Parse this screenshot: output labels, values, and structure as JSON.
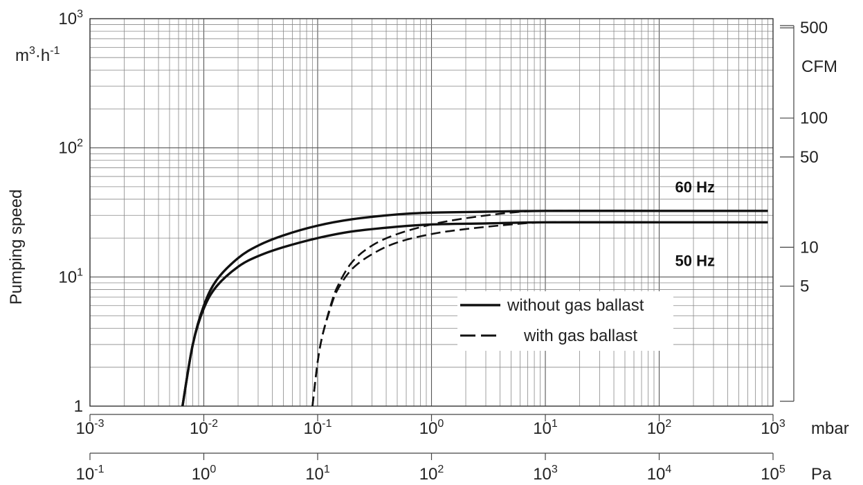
{
  "chart_data": {
    "type": "line",
    "xscale": "log",
    "yscale": "log",
    "xlim": [
      0.001,
      1000
    ],
    "ylim": [
      1,
      1000
    ],
    "grid": true,
    "legend_position": "lower-right",
    "ylabel": "Pumping speed",
    "y_unit": {
      "base": "m",
      "sup1": "3",
      "mid": "·h",
      "sup2": "-1"
    },
    "x_unit": "mbar",
    "x2_unit": "Pa",
    "y2_unit": "CFM",
    "y_ticks": [
      {
        "value": 1,
        "base": "1",
        "exp": ""
      },
      {
        "value": 10,
        "base": "10",
        "exp": "1"
      },
      {
        "value": 100,
        "base": "10",
        "exp": "2"
      },
      {
        "value": 1000,
        "base": "10",
        "exp": "3"
      }
    ],
    "x_ticks": [
      {
        "value": 0.001,
        "base": "10",
        "exp": "-3"
      },
      {
        "value": 0.01,
        "base": "10",
        "exp": "-2"
      },
      {
        "value": 0.1,
        "base": "10",
        "exp": "-1"
      },
      {
        "value": 1,
        "base": "10",
        "exp": "0"
      },
      {
        "value": 10,
        "base": "10",
        "exp": "1"
      },
      {
        "value": 100,
        "base": "10",
        "exp": "2"
      },
      {
        "value": 1000,
        "base": "10",
        "exp": "3"
      }
    ],
    "x2_ticks": [
      {
        "value": 0.1,
        "base": "10",
        "exp": "-1"
      },
      {
        "value": 1,
        "base": "10",
        "exp": "0"
      },
      {
        "value": 10,
        "base": "10",
        "exp": "1"
      },
      {
        "value": 100,
        "base": "10",
        "exp": "2"
      },
      {
        "value": 1000,
        "base": "10",
        "exp": "3"
      },
      {
        "value": 10000,
        "base": "10",
        "exp": "4"
      },
      {
        "value": 100000,
        "base": "10",
        "exp": "5"
      }
    ],
    "y2_ticks": [
      {
        "value": 5,
        "label": "5"
      },
      {
        "value": 10,
        "label": "10"
      },
      {
        "value": 50,
        "label": "50"
      },
      {
        "value": 100,
        "label": "100"
      },
      {
        "value": 500,
        "label": "500"
      }
    ],
    "series": [
      {
        "name": "without gas ballast",
        "label": "60 Hz",
        "style": "solid",
        "x": [
          0.0065,
          0.008,
          0.01,
          0.013,
          0.02,
          0.03,
          0.05,
          0.1,
          0.2,
          0.5,
          1,
          3,
          10,
          100,
          900
        ],
        "y": [
          1,
          3,
          6,
          9.5,
          14,
          17.5,
          21,
          25,
          28,
          30.5,
          31.5,
          32,
          32.5,
          32.5,
          32.5
        ]
      },
      {
        "name": "without gas ballast",
        "label": "50 Hz",
        "style": "solid",
        "x": [
          0.0065,
          0.008,
          0.01,
          0.013,
          0.02,
          0.03,
          0.05,
          0.1,
          0.2,
          0.5,
          1,
          3,
          10,
          100,
          900
        ],
        "y": [
          1,
          3,
          5.7,
          8.5,
          12,
          14.5,
          17,
          20,
          22.5,
          24.5,
          25.5,
          26,
          26.5,
          26.5,
          26.5
        ]
      },
      {
        "name": "with gas ballast",
        "label": "60 Hz",
        "style": "dashed",
        "x": [
          0.09,
          0.1,
          0.11,
          0.13,
          0.15,
          0.2,
          0.3,
          0.5,
          1,
          2,
          5,
          10,
          30
        ],
        "y": [
          1,
          2.2,
          3.5,
          6,
          8.5,
          13,
          17.5,
          21.5,
          25.5,
          28.5,
          31.5,
          32.5,
          32.5
        ]
      },
      {
        "name": "with gas ballast",
        "label": "50 Hz",
        "style": "dashed",
        "x": [
          0.09,
          0.1,
          0.11,
          0.13,
          0.15,
          0.2,
          0.3,
          0.5,
          1,
          2,
          5,
          10,
          30
        ],
        "y": [
          1,
          2.2,
          3.5,
          5.8,
          8,
          11.5,
          15,
          18.5,
          21.5,
          23.5,
          25.5,
          26.5,
          26.5
        ]
      }
    ],
    "series_labels": [
      {
        "text": "60 Hz",
        "x": 200,
        "y": 38
      },
      {
        "text": "50 Hz",
        "x": 200,
        "y": 18
      }
    ],
    "legend": [
      {
        "style": "solid",
        "text": "without gas ballast"
      },
      {
        "style": "dashed",
        "text": "with gas ballast"
      }
    ]
  }
}
